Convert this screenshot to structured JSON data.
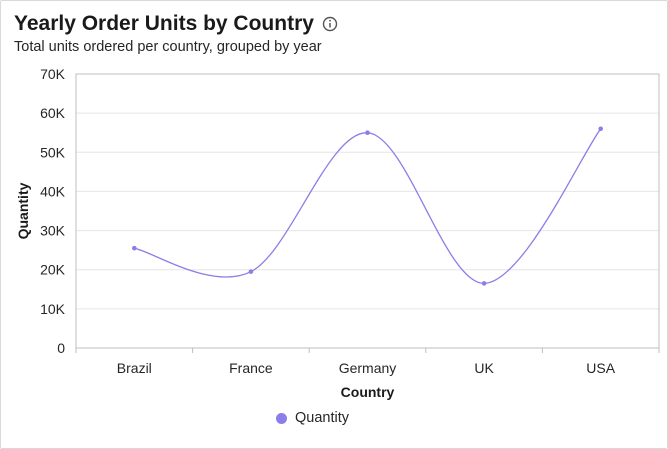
{
  "header": {
    "title": "Yearly Order Units by Country",
    "subtitle": "Total units ordered per country, grouped by year",
    "info_icon": "info-circle-icon"
  },
  "colors": {
    "series": "#8b7ee8",
    "grid": "#e6e6e6",
    "axis": "#bfbfbf"
  },
  "chart_data": {
    "type": "line",
    "curve": "smooth",
    "categories": [
      "Brazil",
      "France",
      "Germany",
      "UK",
      "USA"
    ],
    "series": [
      {
        "name": "Quantity",
        "values": [
          25500,
          19500,
          55000,
          16500,
          56000
        ]
      }
    ],
    "ylim": [
      0,
      70000
    ],
    "yticks": [
      0,
      10000,
      20000,
      30000,
      40000,
      50000,
      60000,
      70000
    ],
    "ytick_labels": [
      "0",
      "10K",
      "20K",
      "30K",
      "40K",
      "50K",
      "60K",
      "70K"
    ],
    "xlabel": "Country",
    "ylabel": "Quantity",
    "grid": true,
    "legend": "bottom-center"
  }
}
